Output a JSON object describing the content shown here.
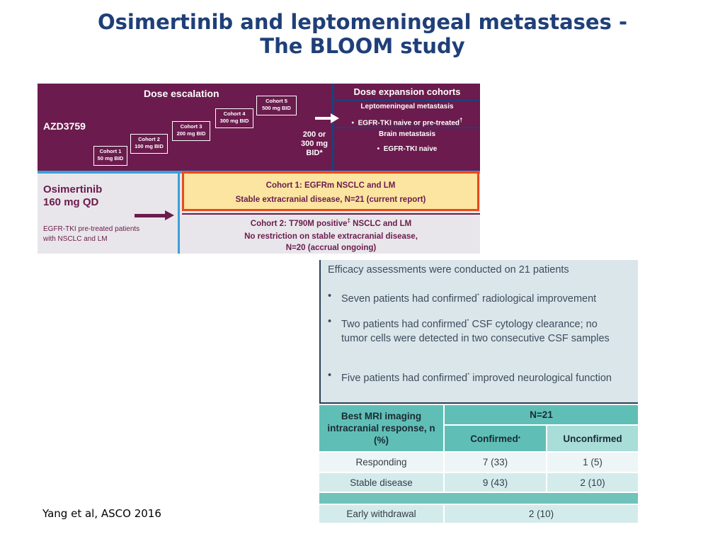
{
  "slide": {
    "title_line1": "Osimertinib and leptomeningeal metastases -",
    "title_line2": "The BLOOM study",
    "citation": "Yang et al, ASCO 2016"
  },
  "design": {
    "dose_escalation_title": "Dose escalation",
    "drug_code": "AZD3759",
    "cohorts": [
      {
        "name": "Cohort 1",
        "dose": "50 mg BID"
      },
      {
        "name": "Cohort 2",
        "dose": "100 mg BID"
      },
      {
        "name": "Cohort 3",
        "dose": "200 mg BID"
      },
      {
        "name": "Cohort 4",
        "dose": "300 mg BID"
      },
      {
        "name": "Cohort 5",
        "dose": "500 mg BID"
      }
    ],
    "dose_note": {
      "line1": "200 or",
      "line2": "300 mg",
      "line3": "BID*"
    },
    "expansion": {
      "title": "Dose expansion cohorts",
      "lm_title": "Leptomeningeal metastasis",
      "lm_item": "EGFR-TKI naive or pre-treated",
      "lm_mark": "†",
      "bm_title": "Brain metastasis",
      "bm_item": "EGFR-TKI naive",
      "bullet": "•"
    },
    "osimertinib": {
      "name": "Osimertinib",
      "dose": "160 mg QD",
      "note_line1": "EGFR-TKI pre-treated patients",
      "note_line2": "with NSCLC and LM"
    },
    "cohort1": {
      "line1": "Cohort 1: EGFRm NSCLC and LM",
      "line2": "Stable extracranial disease, N=21 (current report)"
    },
    "cohort2": {
      "line1_pre": "Cohort 2: T790M positive",
      "line1_mark": "‡",
      "line1_post": " NSCLC and LM",
      "line2": "No restriction on stable extracranial disease,",
      "line3": "N=20 (accrual ongoing)"
    }
  },
  "efficacy": {
    "title": "Efficacy assessments were conducted on 21 patients",
    "bullet": "•",
    "mark": "*",
    "items": [
      {
        "pre": "Seven patients had confirmed",
        "post": " radiological improvement"
      },
      {
        "pre": "Two patients had confirmed",
        "post": " CSF cytology clearance; no tumor cells were detected in two consecutive CSF samples"
      },
      {
        "pre": "Five patients had confirmed",
        "post": " improved neurological function"
      }
    ]
  },
  "response_table": {
    "header_label": "Best MRI imaging intracranial response, n (%)",
    "n_label": "N=21",
    "col_confirmed": "Confirmed",
    "col_confirmed_mark": "*",
    "col_unconfirmed": "Unconfirmed",
    "rows": [
      {
        "label": "Responding",
        "confirmed": "7 (33)",
        "unconfirmed": "1 (5)"
      },
      {
        "label": "Stable disease",
        "confirmed": "9 (43)",
        "unconfirmed": "2 (10)"
      }
    ],
    "withdrawal": {
      "label": "Early withdrawal",
      "value": "2 (10)"
    }
  },
  "colors": {
    "title": "#1f3f78",
    "purple": "#6b1b4d",
    "navy": "#1f3f78",
    "cyan": "#3aa0d8",
    "highlight_fill": "#fbe5a0",
    "highlight_border": "#e84a1e",
    "teal_header": "#5fbfb6",
    "teal_light": "#a8ddd8",
    "row_light": "#eef5f6",
    "row_mid": "#d4ebeb"
  }
}
